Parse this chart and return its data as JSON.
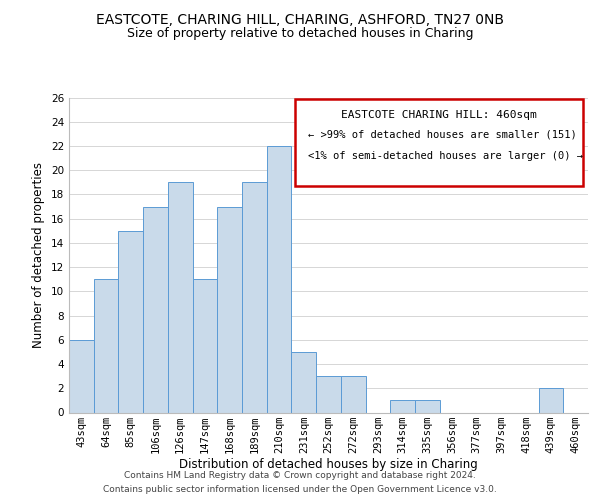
{
  "title": "EASTCOTE, CHARING HILL, CHARING, ASHFORD, TN27 0NB",
  "subtitle": "Size of property relative to detached houses in Charing",
  "xlabel": "Distribution of detached houses by size in Charing",
  "ylabel": "Number of detached properties",
  "bin_labels": [
    "43sqm",
    "64sqm",
    "85sqm",
    "106sqm",
    "126sqm",
    "147sqm",
    "168sqm",
    "189sqm",
    "210sqm",
    "231sqm",
    "252sqm",
    "272sqm",
    "293sqm",
    "314sqm",
    "335sqm",
    "356sqm",
    "377sqm",
    "397sqm",
    "418sqm",
    "439sqm",
    "460sqm"
  ],
  "bar_values": [
    6,
    11,
    15,
    17,
    19,
    11,
    17,
    19,
    22,
    5,
    3,
    3,
    0,
    1,
    1,
    0,
    0,
    0,
    0,
    2,
    0
  ],
  "bar_color": "#c9daea",
  "bar_edge_color": "#5b9bd5",
  "ylim": [
    0,
    26
  ],
  "yticks": [
    0,
    2,
    4,
    6,
    8,
    10,
    12,
    14,
    16,
    18,
    20,
    22,
    24,
    26
  ],
  "annotation_title": "EASTCOTE CHARING HILL: 460sqm",
  "annotation_line1": "← >99% of detached houses are smaller (151)",
  "annotation_line2": "<1% of semi-detached houses are larger (0) →",
  "annotation_box_color": "#ffffff",
  "annotation_box_edge_color": "#cc0000",
  "footer_line1": "Contains HM Land Registry data © Crown copyright and database right 2024.",
  "footer_line2": "Contains public sector information licensed under the Open Government Licence v3.0.",
  "background_color": "#ffffff",
  "grid_color": "#d0d0d0",
  "title_fontsize": 10,
  "subtitle_fontsize": 9,
  "axis_label_fontsize": 8.5,
  "tick_fontsize": 7.5,
  "footer_fontsize": 6.5,
  "annotation_fontsize": 8
}
